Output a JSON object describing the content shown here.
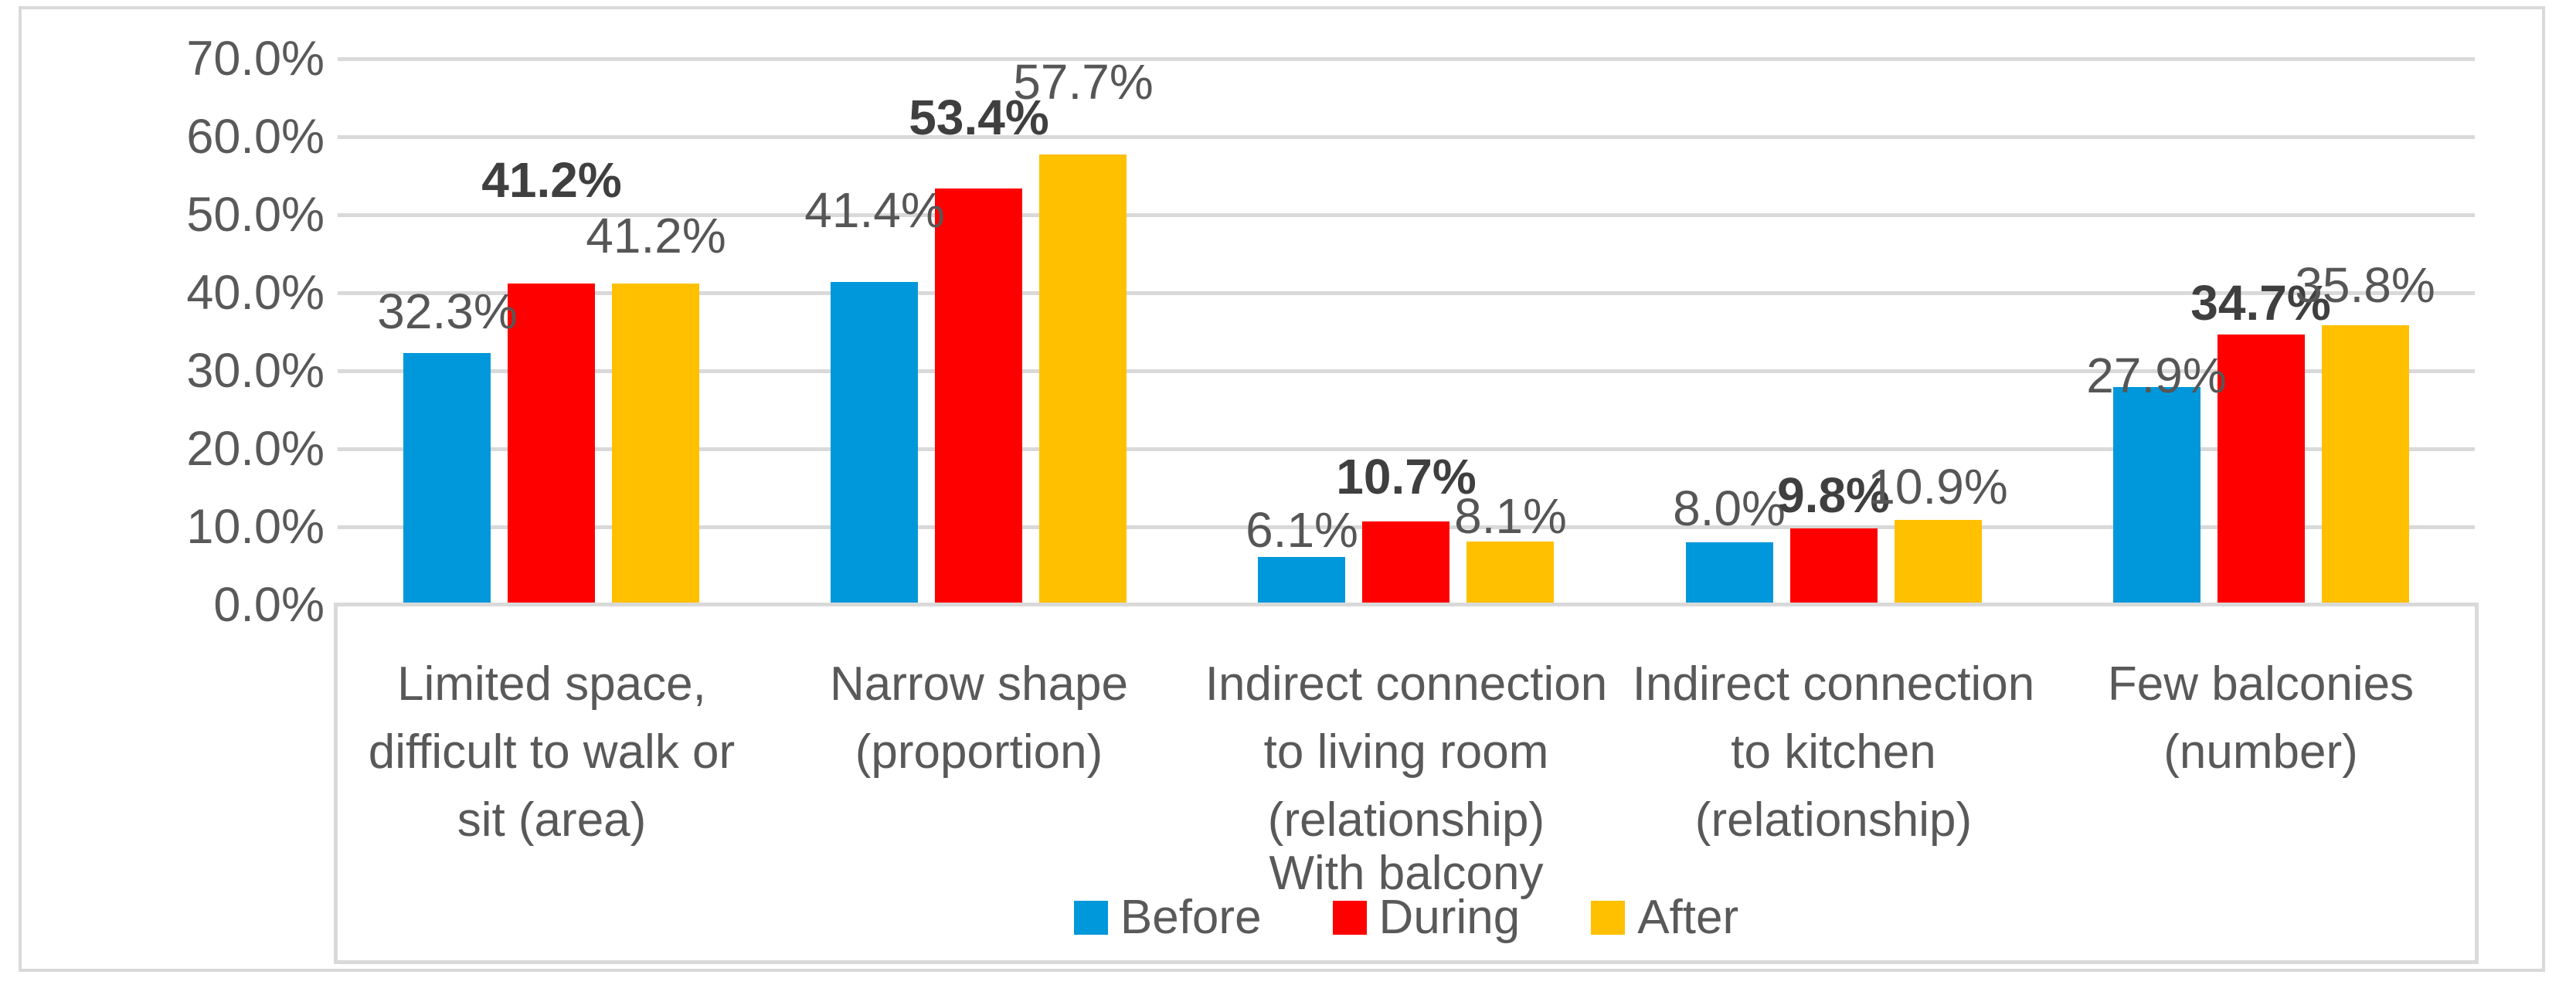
{
  "chart_data": {
    "type": "bar",
    "title": "",
    "x_axis_title": "With balcony",
    "categories": [
      "Limited space,\ndifficult to walk or\nsit (area)",
      "Narrow shape\n(proportion)",
      "Indirect connection\nto living room\n(relationship)",
      "Indirect connection\nto kitchen\n(relationship)",
      "Few balconies\n(number)"
    ],
    "series": [
      {
        "name": "Before",
        "color": "#0098DB",
        "bold_labels": false,
        "values": [
          32.3,
          41.4,
          6.1,
          8.0,
          27.9
        ],
        "labels": [
          "32.3%",
          "41.4%",
          "6.1%",
          "8.0%",
          "27.9%"
        ]
      },
      {
        "name": "During",
        "color": "#FF0000",
        "bold_labels": true,
        "values": [
          41.2,
          53.4,
          10.7,
          9.8,
          34.7
        ],
        "labels": [
          "41.2%",
          "53.4%",
          "10.7%",
          "9.8%",
          "34.7%"
        ]
      },
      {
        "name": "After",
        "color": "#FFC000",
        "bold_labels": false,
        "values": [
          41.2,
          57.7,
          8.1,
          10.9,
          35.8
        ],
        "labels": [
          "41.2%",
          "57.7%",
          "8.1%",
          "10.9%",
          "35.8%"
        ]
      }
    ],
    "y_ticks": [
      "0.0%",
      "10.0%",
      "20.0%",
      "30.0%",
      "40.0%",
      "50.0%",
      "60.0%",
      "70.0%"
    ],
    "ylim": [
      0,
      70
    ],
    "grid": true,
    "legend_position": "bottom",
    "label_gaps": [
      [
        23,
        62,
        4,
        13,
        -16
      ],
      [
        103,
        61,
        27,
        12,
        10
      ],
      [
        31,
        63,
        2,
        12,
        21
      ]
    ],
    "colors": {
      "grid": "#D9D9D9",
      "frame_border": "#D9D9D9",
      "axis_text": "#595959",
      "label_text": "#565656",
      "label_text_bold": "#3F3F3F",
      "background": "#FFFFFF"
    }
  }
}
